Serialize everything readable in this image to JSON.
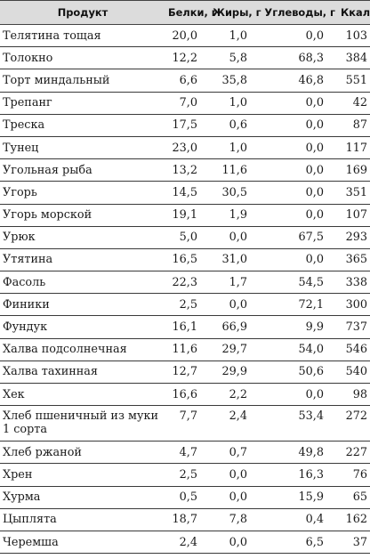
{
  "table": {
    "headers": {
      "name": "Продукт",
      "protein": "Белки, г",
      "fat": "Жиры, г",
      "carbs": "Углеводы, г",
      "kcal": "Ккал"
    },
    "rows": [
      {
        "name": "Телятина тощая",
        "protein": "20,0",
        "fat": "1,0",
        "carbs": "0,0",
        "kcal": "103"
      },
      {
        "name": "Толокно",
        "protein": "12,2",
        "fat": "5,8",
        "carbs": "68,3",
        "kcal": "384"
      },
      {
        "name": "Торт миндальный",
        "protein": "6,6",
        "fat": "35,8",
        "carbs": "46,8",
        "kcal": "551"
      },
      {
        "name": "Трепанг",
        "protein": "7,0",
        "fat": "1,0",
        "carbs": "0,0",
        "kcal": "42"
      },
      {
        "name": "Треска",
        "protein": "17,5",
        "fat": "0,6",
        "carbs": "0,0",
        "kcal": "87"
      },
      {
        "name": "Тунец",
        "protein": "23,0",
        "fat": "1,0",
        "carbs": "0,0",
        "kcal": "117"
      },
      {
        "name": "Угольная рыба",
        "protein": "13,2",
        "fat": "11,6",
        "carbs": "0,0",
        "kcal": "169"
      },
      {
        "name": "Угорь",
        "protein": "14,5",
        "fat": "30,5",
        "carbs": "0,0",
        "kcal": "351"
      },
      {
        "name": "Угорь морской",
        "protein": "19,1",
        "fat": "1,9",
        "carbs": "0,0",
        "kcal": "107"
      },
      {
        "name": "Урюк",
        "protein": "5,0",
        "fat": "0,0",
        "carbs": "67,5",
        "kcal": "293"
      },
      {
        "name": "Утятина",
        "protein": "16,5",
        "fat": "31,0",
        "carbs": "0,0",
        "kcal": "365"
      },
      {
        "name": "Фасоль",
        "protein": "22,3",
        "fat": "1,7",
        "carbs": "54,5",
        "kcal": "338"
      },
      {
        "name": "Финики",
        "protein": "2,5",
        "fat": "0,0",
        "carbs": "72,1",
        "kcal": "300"
      },
      {
        "name": "Фундук",
        "protein": "16,1",
        "fat": "66,9",
        "carbs": "9,9",
        "kcal": "737"
      },
      {
        "name": "Халва подсолнечная",
        "protein": "11,6",
        "fat": "29,7",
        "carbs": "54,0",
        "kcal": "546"
      },
      {
        "name": "Халва тахинная",
        "protein": "12,7",
        "fat": "29,9",
        "carbs": "50,6",
        "kcal": "540"
      },
      {
        "name": "Хек",
        "protein": "16,6",
        "fat": "2,2",
        "carbs": "0,0",
        "kcal": "98"
      },
      {
        "name": "Хлеб пшеничный из муки 1 сорта",
        "protein": "7,7",
        "fat": "2,4",
        "carbs": "53,4",
        "kcal": "272"
      },
      {
        "name": "Хлеб ржаной",
        "protein": "4,7",
        "fat": "0,7",
        "carbs": "49,8",
        "kcal": "227"
      },
      {
        "name": "Хрен",
        "protein": "2,5",
        "fat": "0,0",
        "carbs": "16,3",
        "kcal": "76"
      },
      {
        "name": "Хурма",
        "protein": "0,5",
        "fat": "0,0",
        "carbs": "15,9",
        "kcal": "65"
      },
      {
        "name": "Цыплята",
        "protein": "18,7",
        "fat": "7,8",
        "carbs": "0,4",
        "kcal": "162"
      },
      {
        "name": "Черемша",
        "protein": "2,4",
        "fat": "0,0",
        "carbs": "6,5",
        "kcal": "37"
      }
    ]
  }
}
